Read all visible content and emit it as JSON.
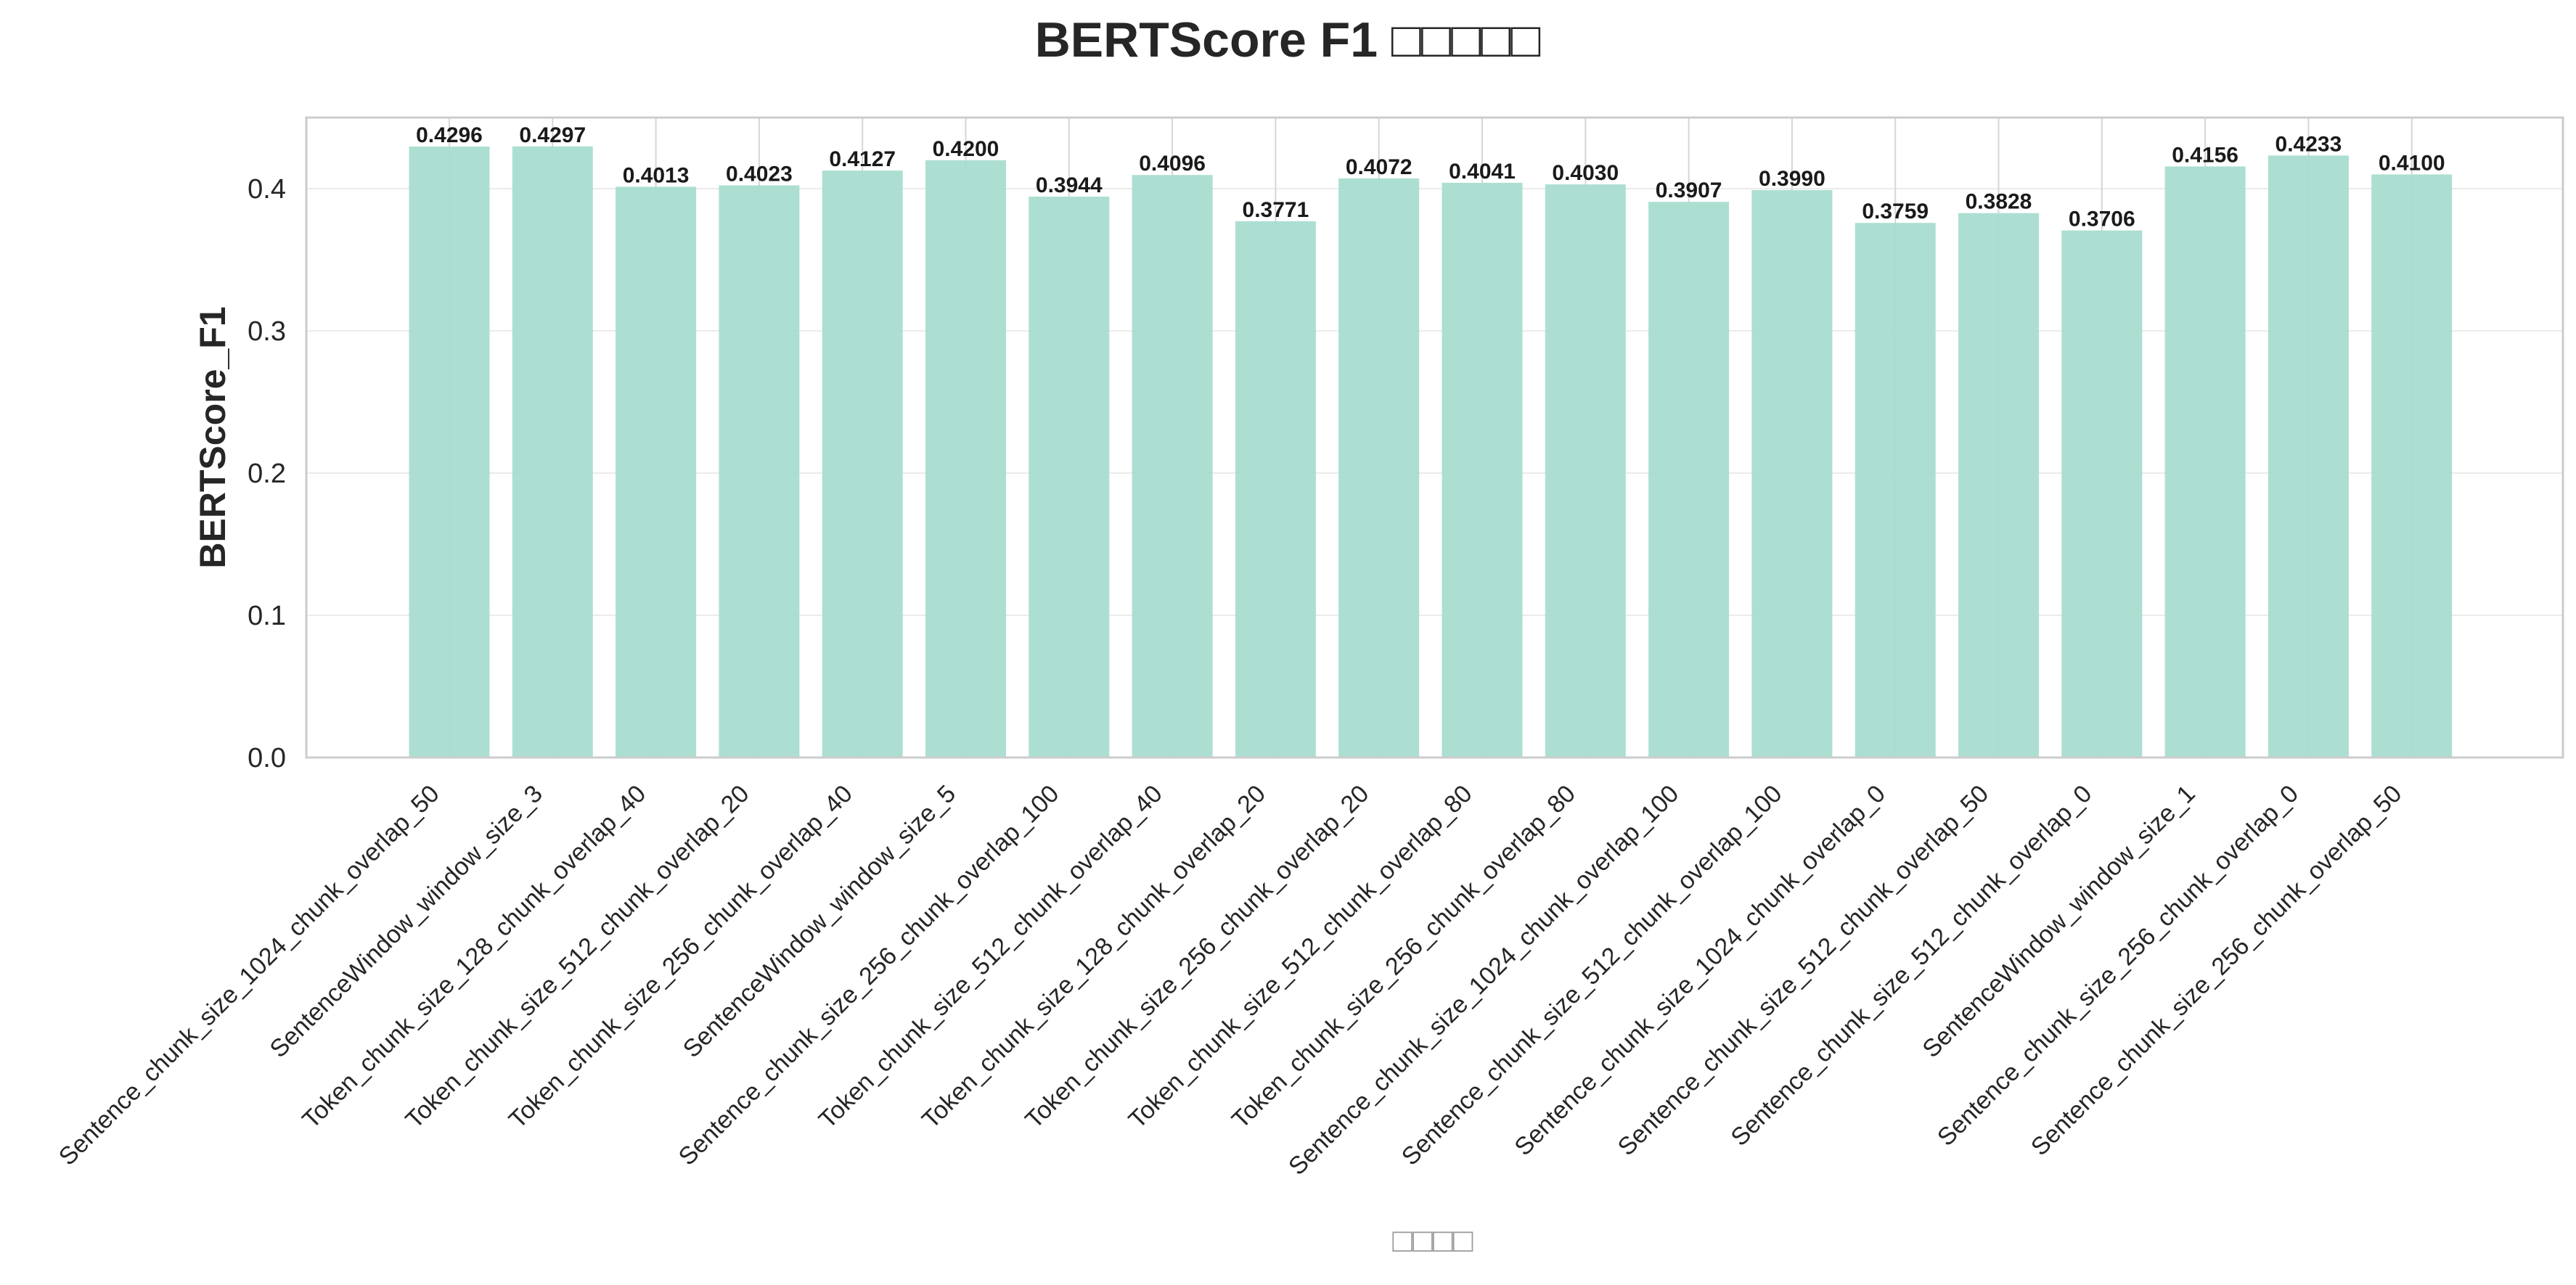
{
  "chart_data": {
    "type": "bar",
    "title": "BERTScore F1 □□□□□",
    "xlabel": "□□□□",
    "ylabel": "BERTScore_F1",
    "ylim": [
      0,
      0.45
    ],
    "yticks": [
      "0.0",
      "0.1",
      "0.2",
      "0.3",
      "0.4"
    ],
    "bar_color": "#a8ddd0",
    "grid": true,
    "categories": [
      "Sentence_chunk_size_1024_chunk_overlap_50",
      "SentenceWindow_window_size_3",
      "Token_chunk_size_128_chunk_overlap_40",
      "Token_chunk_size_512_chunk_overlap_20",
      "Token_chunk_size_256_chunk_overlap_40",
      "SentenceWindow_window_size_5",
      "Sentence_chunk_size_256_chunk_overlap_100",
      "Token_chunk_size_512_chunk_overlap_40",
      "Token_chunk_size_128_chunk_overlap_20",
      "Token_chunk_size_256_chunk_overlap_20",
      "Token_chunk_size_512_chunk_overlap_80",
      "Token_chunk_size_256_chunk_overlap_80",
      "Sentence_chunk_size_1024_chunk_overlap_100",
      "Sentence_chunk_size_512_chunk_overlap_100",
      "Sentence_chunk_size_1024_chunk_overlap_0",
      "Sentence_chunk_size_512_chunk_overlap_50",
      "Sentence_chunk_size_512_chunk_overlap_0",
      "SentenceWindow_window_size_1",
      "Sentence_chunk_size_256_chunk_overlap_0",
      "Sentence_chunk_size_256_chunk_overlap_50"
    ],
    "values": [
      0.4296,
      0.4297,
      0.4013,
      0.4023,
      0.4127,
      0.42,
      0.3944,
      0.4096,
      0.3771,
      0.4072,
      0.4041,
      0.403,
      0.3907,
      0.399,
      0.3759,
      0.3828,
      0.3706,
      0.4156,
      0.4233,
      0.41
    ],
    "value_labels": [
      "0.4296",
      "0.4297",
      "0.4013",
      "0.4023",
      "0.4127",
      "0.4200",
      "0.3944",
      "0.4096",
      "0.3771",
      "0.4072",
      "0.4041",
      "0.4030",
      "0.3907",
      "0.3990",
      "0.3759",
      "0.3828",
      "0.3706",
      "0.4156",
      "0.4233",
      "0.4100"
    ]
  }
}
